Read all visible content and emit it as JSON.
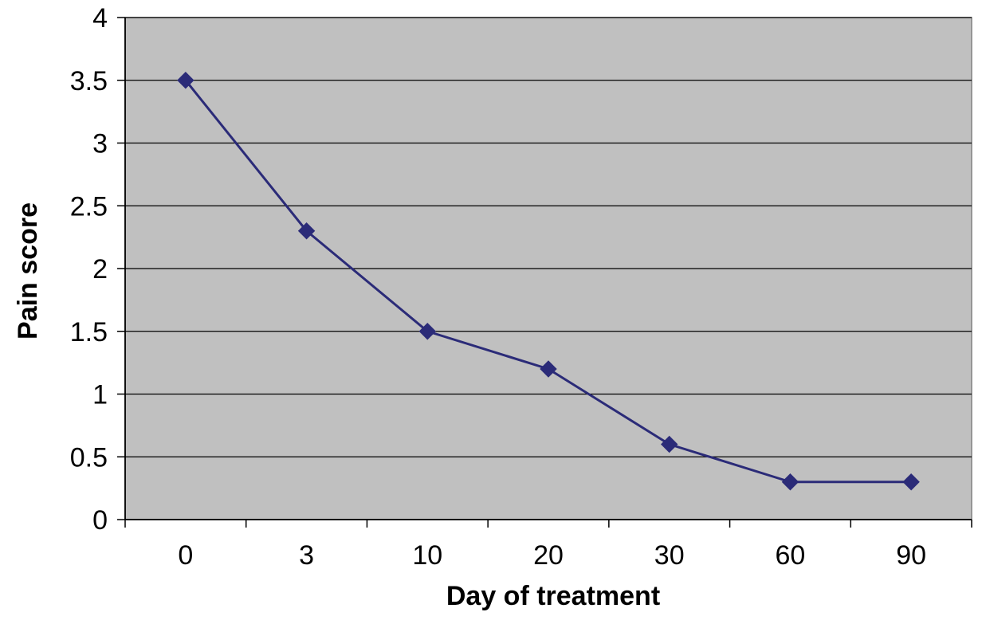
{
  "chart_data": {
    "type": "line",
    "categories": [
      "0",
      "3",
      "10",
      "20",
      "30",
      "60",
      "90"
    ],
    "series": [
      {
        "values": [
          3.5,
          2.3,
          1.5,
          1.2,
          0.6,
          0.3,
          0.3
        ]
      }
    ],
    "xlabel": "Day of treatment",
    "ylabel": "Pain score",
    "ylim": [
      0,
      4
    ],
    "yticks": [
      "0",
      "0.5",
      "1",
      "1.5",
      "2",
      "2.5",
      "3",
      "3.5",
      "4"
    ],
    "grid": "horizontal",
    "legend": "none",
    "colors": {
      "plot_background": "#c0c0c0",
      "series_line": "#2b2b78",
      "gridline": "#000000"
    }
  }
}
